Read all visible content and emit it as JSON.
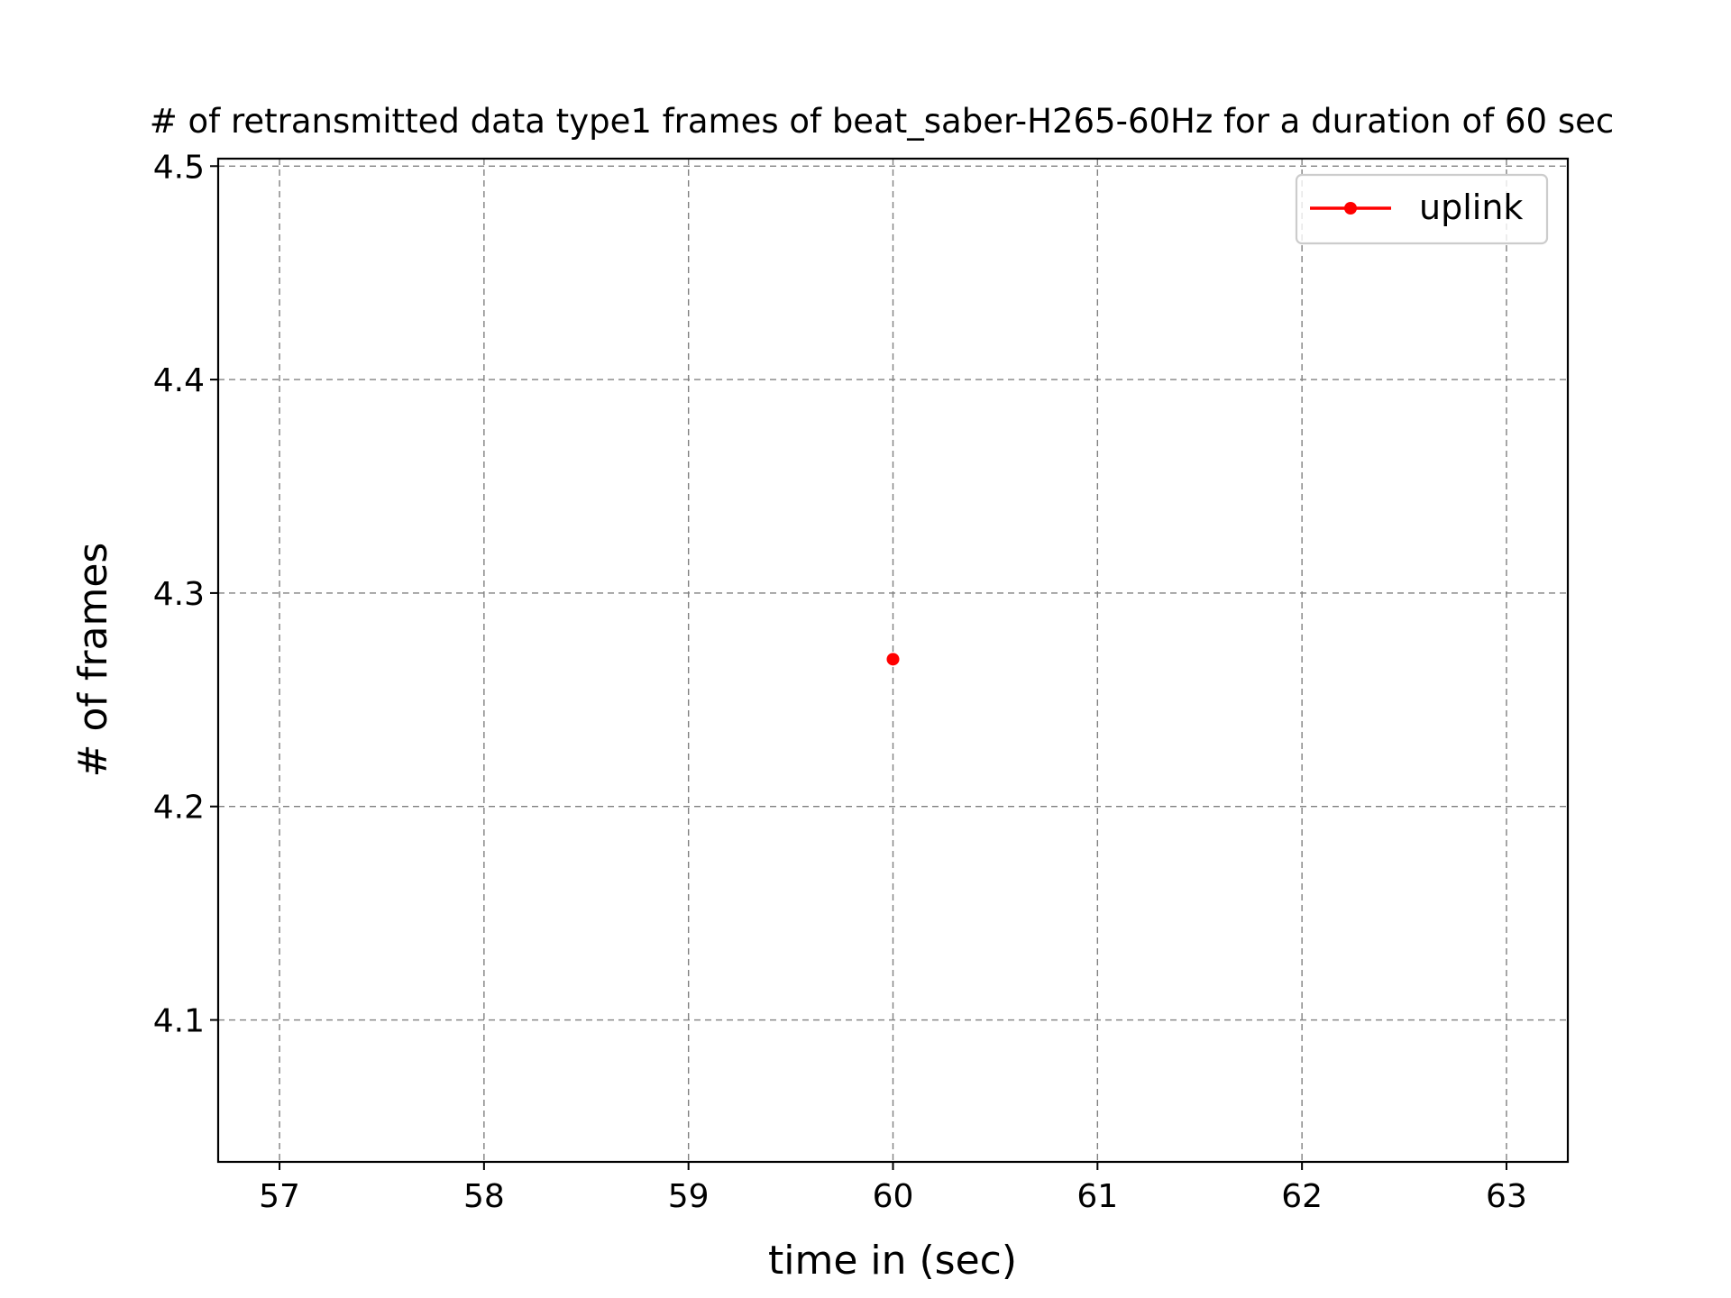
{
  "chart_data": {
    "type": "line",
    "title": "# of retransmitted data type1 frames of beat_saber-H265-60Hz for a duration of 60 sec",
    "xlabel": "time in (sec)",
    "ylabel": "# of frames",
    "xlim": [
      56.7,
      63.3
    ],
    "ylim": [
      4.0335,
      4.5035
    ],
    "xticks": [
      57,
      58,
      59,
      60,
      61,
      62,
      63
    ],
    "yticks": [
      4.1,
      4.2,
      4.3,
      4.4,
      4.5
    ],
    "grid": true,
    "legend_position": "top-right",
    "series": [
      {
        "name": "uplink",
        "color": "#ff0000",
        "marker": "circle",
        "x": [
          60
        ],
        "y": [
          4.269
        ]
      }
    ]
  }
}
